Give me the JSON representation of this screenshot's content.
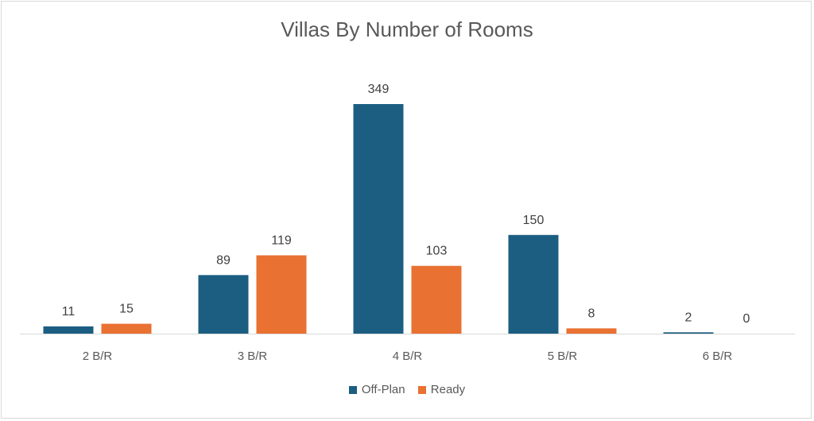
{
  "chart_data": {
    "type": "bar",
    "title": "Villas By Number of Rooms",
    "categories": [
      "2 B/R",
      "3 B/R",
      "4 B/R",
      "5 B/R",
      "6 B/R"
    ],
    "series": [
      {
        "name": "Off-Plan",
        "values": [
          11,
          89,
          349,
          150,
          2
        ],
        "color": "#1b5e82"
      },
      {
        "name": "Ready",
        "values": [
          15,
          119,
          103,
          8,
          0
        ],
        "color": "#e97132"
      }
    ],
    "ylim": [
      0,
      350
    ],
    "grid": false,
    "data_labels": true,
    "legend_position": "bottom"
  }
}
